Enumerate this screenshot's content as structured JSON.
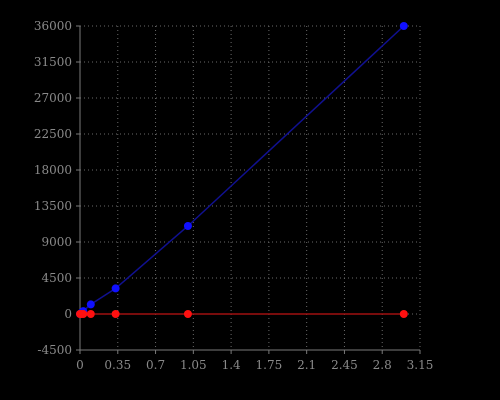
{
  "chart_data": {
    "type": "line",
    "title": "",
    "xlabel": "",
    "ylabel": "",
    "xlim": [
      0,
      3.15
    ],
    "ylim": [
      -4500,
      36000
    ],
    "x_ticks": [
      0,
      0.35,
      0.7,
      1.05,
      1.4,
      1.75,
      2.1,
      2.45,
      2.8,
      3.15
    ],
    "x_tick_labels": [
      "0",
      "0.35",
      "0.7",
      "1.05",
      "1.4",
      "1.75",
      "2.1",
      "2.45",
      "2.8",
      "3.15"
    ],
    "y_ticks": [
      -4500,
      0,
      4500,
      9000,
      13500,
      18000,
      22500,
      27000,
      31500,
      36000
    ],
    "y_tick_labels": [
      "-4500",
      "0",
      "4500",
      "9000",
      "13500",
      "18000",
      "22500",
      "27000",
      "31500",
      "36000"
    ],
    "grid": true,
    "series": [
      {
        "color": "#1010ff",
        "line_color": "#101090",
        "x": [
          0,
          0.01,
          0.03,
          0.1,
          0.33,
          1.0,
          3.0
        ],
        "y": [
          0,
          120,
          360,
          1200,
          3200,
          11000,
          36000
        ]
      },
      {
        "color": "#ff1010",
        "line_color": "#a01010",
        "x": [
          0,
          0.01,
          0.03,
          0.1,
          0.33,
          1.0,
          3.0
        ],
        "y": [
          0,
          0,
          0,
          0,
          0,
          0,
          0
        ]
      }
    ]
  }
}
